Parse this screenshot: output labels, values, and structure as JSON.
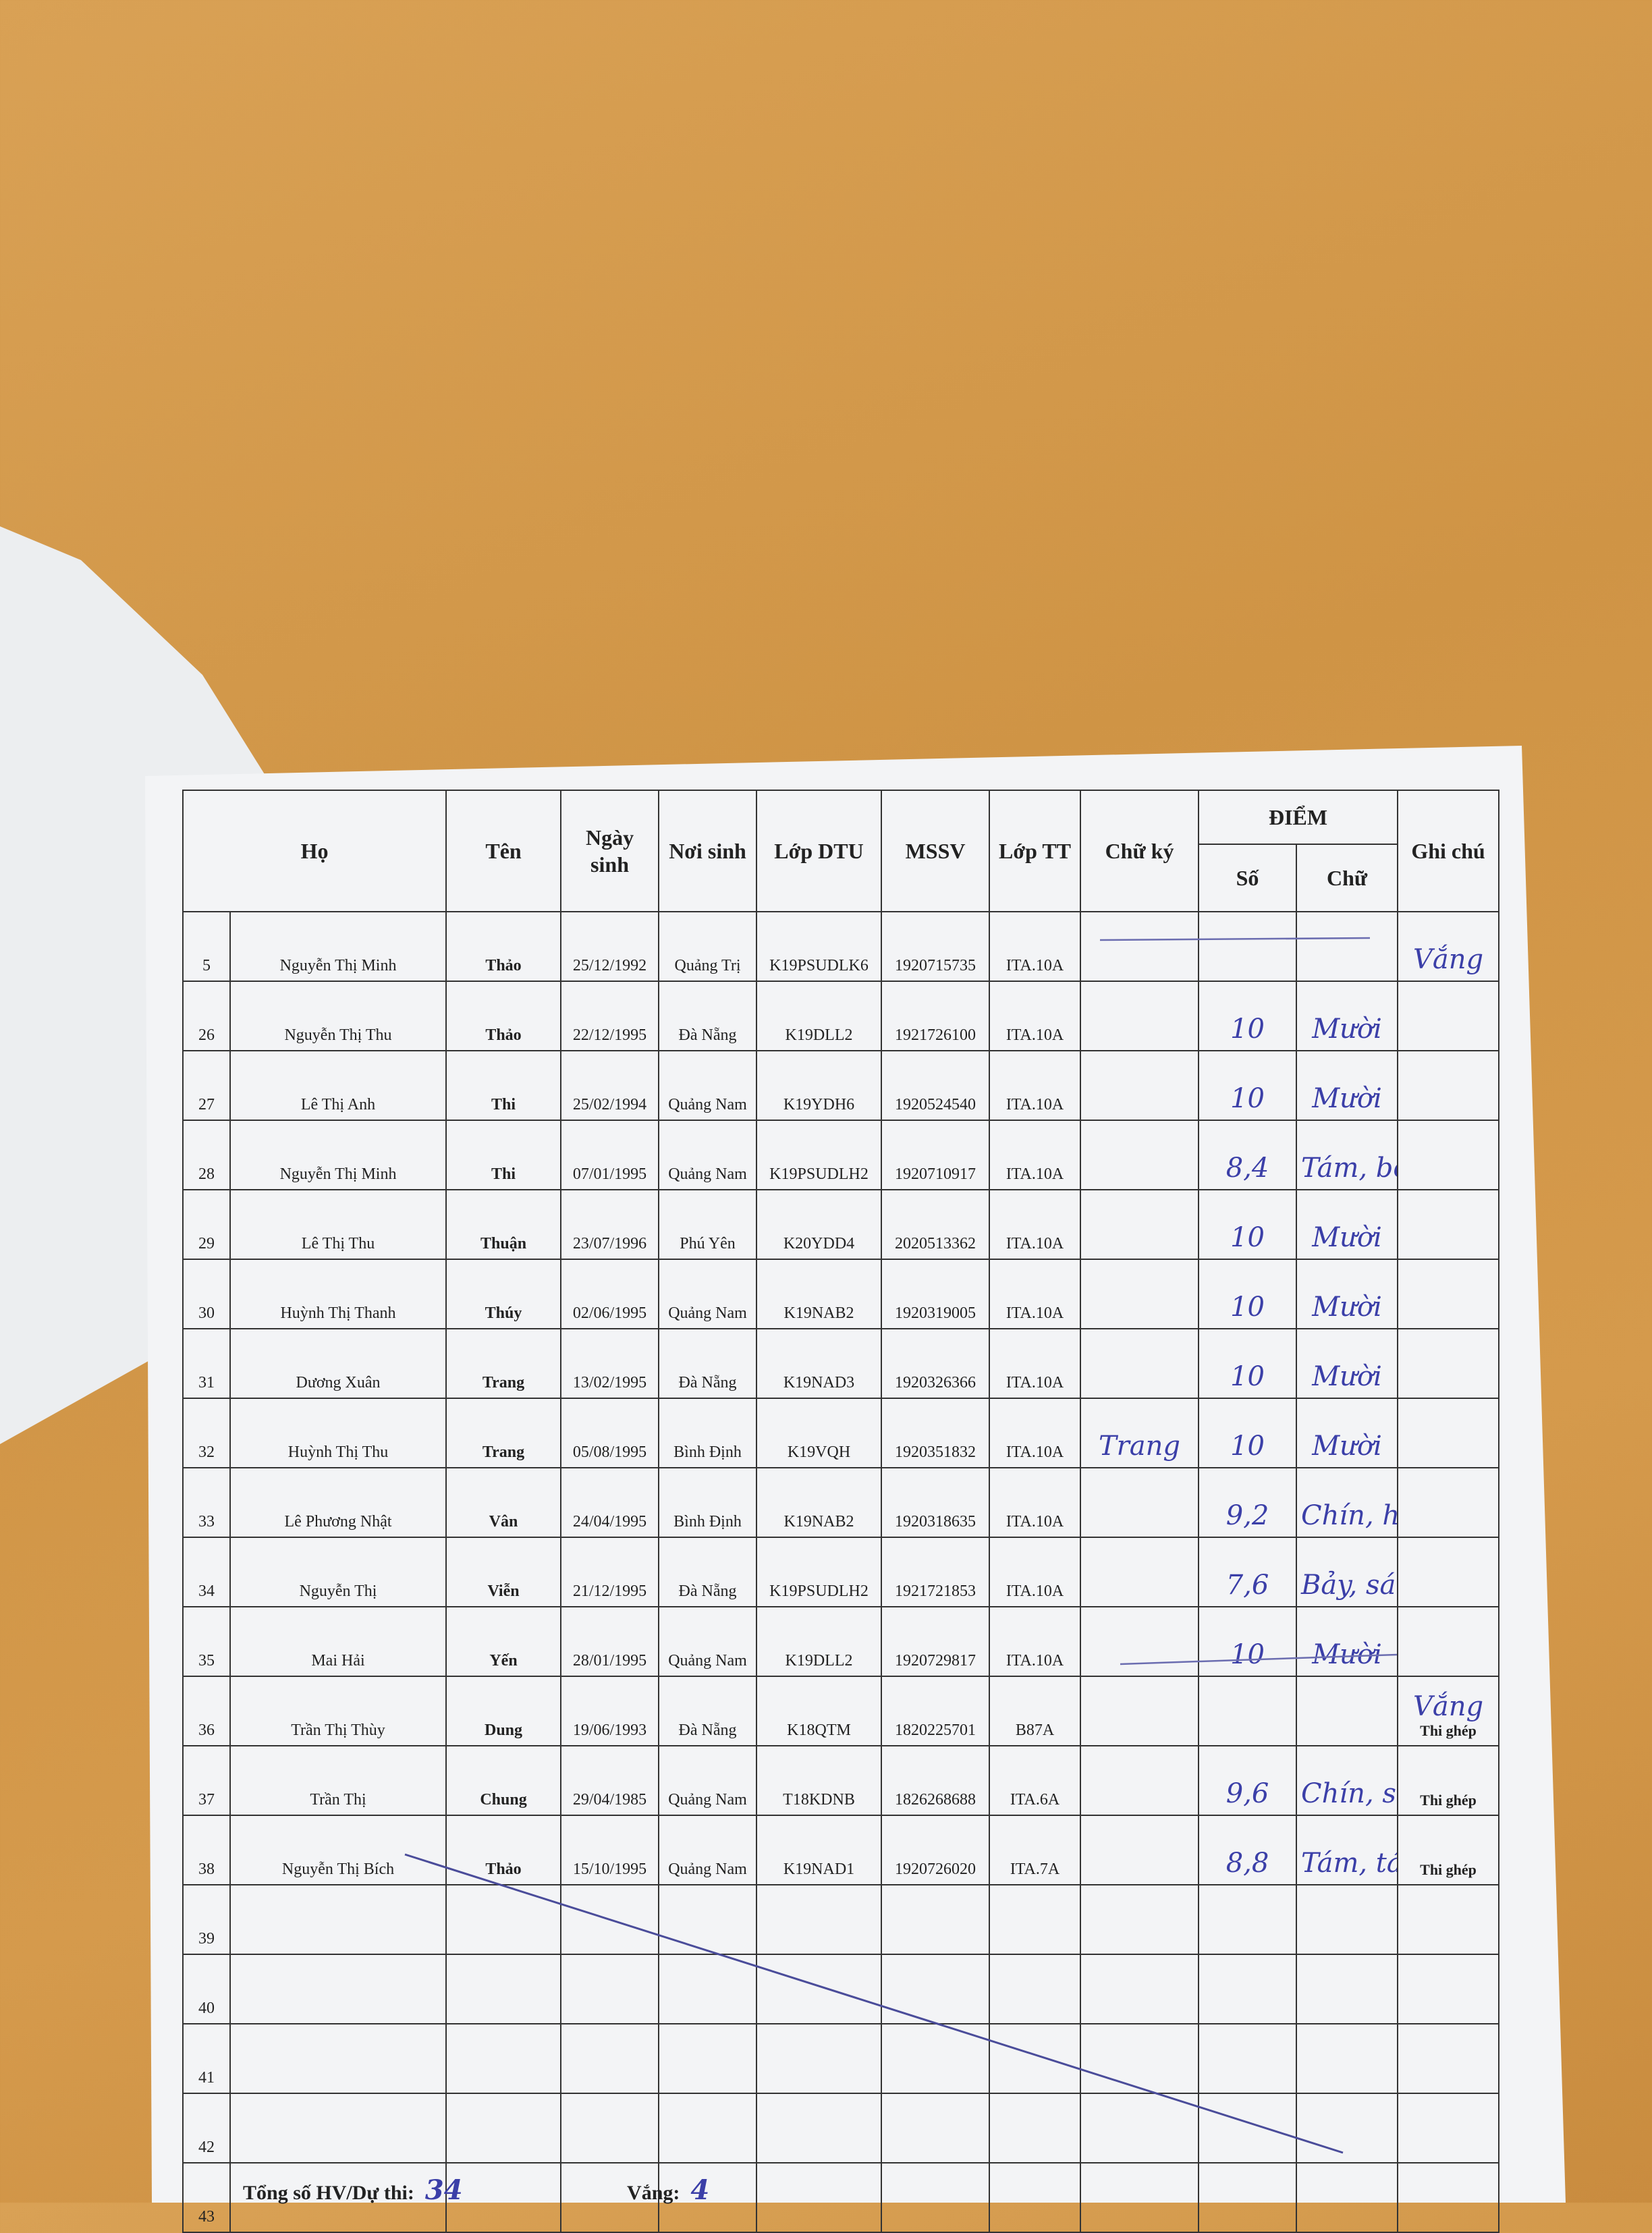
{
  "table": {
    "header": {
      "ho": "Họ",
      "ten": "Tên",
      "ngay_sinh": "Ngày sinh",
      "noi_sinh": "Nơi sinh",
      "lop_dtu": "Lớp DTU",
      "mssv": "MSSV",
      "lop_tt": "Lớp TT",
      "chu_ky": "Chữ ký",
      "diem": "ĐIỂM",
      "so": "Số",
      "chu": "Chữ",
      "ghi_chu": "Ghi chú"
    },
    "rows": [
      {
        "stt": "5",
        "ho": "Nguyễn Thị Minh",
        "ten": "Thảo",
        "ngay_sinh": "25/12/1992",
        "noi_sinh": "Quảng Trị",
        "lop_dtu": "K19PSUDLK6",
        "mssv": "1920715735",
        "lop_tt": "ITA.10A",
        "ghi_chu": "Vắng"
      },
      {
        "stt": "26",
        "ho": "Nguyễn Thị Thu",
        "ten": "Thảo",
        "ngay_sinh": "22/12/1995",
        "noi_sinh": "Đà Nẵng",
        "lop_dtu": "K19DLL2",
        "mssv": "1921726100",
        "lop_tt": "ITA.10A",
        "diem_so": "10",
        "diem_chu": "Mười"
      },
      {
        "stt": "27",
        "ho": "Lê Thị Anh",
        "ten": "Thi",
        "ngay_sinh": "25/02/1994",
        "noi_sinh": "Quảng Nam",
        "lop_dtu": "K19YDH6",
        "mssv": "1920524540",
        "lop_tt": "ITA.10A",
        "diem_so": "10",
        "diem_chu": "Mười"
      },
      {
        "stt": "28",
        "ho": "Nguyễn Thị Minh",
        "ten": "Thi",
        "ngay_sinh": "07/01/1995",
        "noi_sinh": "Quảng Nam",
        "lop_dtu": "K19PSUDLH2",
        "mssv": "1920710917",
        "lop_tt": "ITA.10A",
        "diem_so": "8,4",
        "diem_chu": "Tám, bốn"
      },
      {
        "stt": "29",
        "ho": "Lê Thị Thu",
        "ten": "Thuận",
        "ngay_sinh": "23/07/1996",
        "noi_sinh": "Phú Yên",
        "lop_dtu": "K20YDD4",
        "mssv": "2020513362",
        "lop_tt": "ITA.10A",
        "diem_so": "10",
        "diem_chu": "Mười"
      },
      {
        "stt": "30",
        "ho": "Huỳnh Thị Thanh",
        "ten": "Thúy",
        "ngay_sinh": "02/06/1995",
        "noi_sinh": "Quảng Nam",
        "lop_dtu": "K19NAB2",
        "mssv": "1920319005",
        "lop_tt": "ITA.10A",
        "diem_so": "10",
        "diem_chu": "Mười"
      },
      {
        "stt": "31",
        "ho": "Dương Xuân",
        "ten": "Trang",
        "ngay_sinh": "13/02/1995",
        "noi_sinh": "Đà Nẵng",
        "lop_dtu": "K19NAD3",
        "mssv": "1920326366",
        "lop_tt": "ITA.10A",
        "diem_so": "10",
        "diem_chu": "Mười"
      },
      {
        "stt": "32",
        "ho": "Huỳnh Thị Thu",
        "ten": "Trang",
        "ngay_sinh": "05/08/1995",
        "noi_sinh": "Bình Định",
        "lop_dtu": "K19VQH",
        "mssv": "1920351832",
        "lop_tt": "ITA.10A",
        "chu_ky": "Trang",
        "diem_so": "10",
        "diem_chu": "Mười"
      },
      {
        "stt": "33",
        "ho": "Lê Phương Nhật",
        "ten": "Vân",
        "ngay_sinh": "24/04/1995",
        "noi_sinh": "Bình Định",
        "lop_dtu": "K19NAB2",
        "mssv": "1920318635",
        "lop_tt": "ITA.10A",
        "diem_so": "9,2",
        "diem_chu": "Chín, hai"
      },
      {
        "stt": "34",
        "ho": "Nguyễn Thị",
        "ten": "Viễn",
        "ngay_sinh": "21/12/1995",
        "noi_sinh": "Đà Nẵng",
        "lop_dtu": "K19PSUDLH2",
        "mssv": "1921721853",
        "lop_tt": "ITA.10A",
        "diem_so": "7,6",
        "diem_chu": "Bảy, sáu"
      },
      {
        "stt": "35",
        "ho": "Mai Hải",
        "ten": "Yến",
        "ngay_sinh": "28/01/1995",
        "noi_sinh": "Quảng Nam",
        "lop_dtu": "K19DLL2",
        "mssv": "1920729817",
        "lop_tt": "ITA.10A",
        "diem_so": "10",
        "diem_chu": "Mười"
      },
      {
        "stt": "36",
        "ho": "Trần Thị Thùy",
        "ten": "Dung",
        "ngay_sinh": "19/06/1993",
        "noi_sinh": "Đà Nẵng",
        "lop_dtu": "K18QTM",
        "mssv": "1820225701",
        "lop_tt": "B87A",
        "ghi_chu": "Vắng",
        "ghi_chu_in": "Thi ghép"
      },
      {
        "stt": "37",
        "ho": "Trần Thị",
        "ten": "Chung",
        "ngay_sinh": "29/04/1985",
        "noi_sinh": "Quảng Nam",
        "lop_dtu": "T18KDNB",
        "mssv": "1826268688",
        "lop_tt": "ITA.6A",
        "diem_so": "9,6",
        "diem_chu": "Chín, sáu",
        "ghi_chu_in": "Thi ghép"
      },
      {
        "stt": "38",
        "ho": "Nguyễn Thị Bích",
        "ten": "Thảo",
        "ngay_sinh": "15/10/1995",
        "noi_sinh": "Quảng Nam",
        "lop_dtu": "K19NAD1",
        "mssv": "1920726020",
        "lop_tt": "ITA.7A",
        "diem_so": "8,8",
        "diem_chu": "Tám, tám",
        "ghi_chu_in": "Thi ghép"
      },
      {
        "stt": "39"
      },
      {
        "stt": "40"
      },
      {
        "stt": "41"
      },
      {
        "stt": "42"
      },
      {
        "stt": "43"
      }
    ]
  },
  "footer": {
    "tong_label": "Tổng số HV/Dự thi:",
    "tong_value": "34",
    "vang_label": "Vắng:",
    "vang_value": "4"
  }
}
